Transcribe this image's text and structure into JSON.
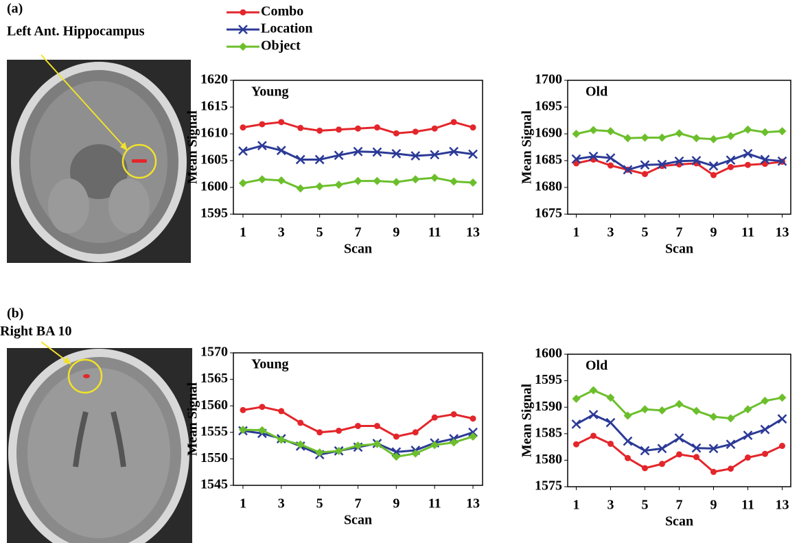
{
  "panels": [
    {
      "label": "(a)",
      "region": "Left Ant. Hippocampus"
    },
    {
      "label": "(b)",
      "region": "Right BA 10"
    }
  ],
  "chart_data": [
    {
      "type": "line",
      "title": "Young",
      "x_label": "Scan",
      "y_label": "Mean Signal",
      "x": [
        1,
        2,
        3,
        4,
        5,
        6,
        7,
        8,
        9,
        10,
        11,
        12,
        13
      ],
      "xlim": [
        0.5,
        13.5
      ],
      "xticks": [
        1,
        3,
        5,
        7,
        9,
        11,
        13
      ],
      "ylim": [
        1595,
        1620
      ],
      "yticks": [
        1595,
        1600,
        1605,
        1610,
        1615,
        1620
      ],
      "grid": false,
      "series": [
        {
          "name": "Combo",
          "color": "#e3262b",
          "marker": "circle",
          "values": [
            1611.2,
            1611.8,
            1612.2,
            1611.1,
            1610.6,
            1610.8,
            1611.0,
            1611.2,
            1610.1,
            1610.4,
            1611.0,
            1612.2,
            1611.2
          ]
        },
        {
          "name": "Location",
          "color": "#2b3a96",
          "marker": "x",
          "values": [
            1606.8,
            1607.8,
            1606.9,
            1605.2,
            1605.2,
            1606.0,
            1606.7,
            1606.6,
            1606.3,
            1605.9,
            1606.1,
            1606.7,
            1606.2
          ]
        },
        {
          "name": "Object",
          "color": "#6cbf2c",
          "marker": "diamond",
          "values": [
            1600.8,
            1601.5,
            1601.3,
            1599.8,
            1600.2,
            1600.5,
            1601.2,
            1601.2,
            1601.0,
            1601.5,
            1601.8,
            1601.1,
            1600.9
          ]
        }
      ]
    },
    {
      "type": "line",
      "title": "Old",
      "x_label": "Scan",
      "y_label": "Mean Signal",
      "x": [
        1,
        2,
        3,
        4,
        5,
        6,
        7,
        8,
        9,
        10,
        11,
        12,
        13
      ],
      "xlim": [
        0.5,
        13.5
      ],
      "xticks": [
        1,
        3,
        5,
        7,
        9,
        11,
        13
      ],
      "ylim": [
        1675,
        1700
      ],
      "yticks": [
        1675,
        1680,
        1685,
        1690,
        1695,
        1700
      ],
      "grid": false,
      "series": [
        {
          "name": "Combo",
          "color": "#e3262b",
          "marker": "circle",
          "values": [
            1684.5,
            1685.2,
            1684.1,
            1683.3,
            1682.5,
            1684.0,
            1684.3,
            1684.5,
            1682.3,
            1683.8,
            1684.2,
            1684.4,
            1684.8
          ]
        },
        {
          "name": "Location",
          "color": "#2b3a96",
          "marker": "x",
          "values": [
            1685.3,
            1685.8,
            1685.5,
            1683.3,
            1684.2,
            1684.3,
            1684.9,
            1685.0,
            1684.0,
            1685.1,
            1686.3,
            1685.2,
            1684.9
          ]
        },
        {
          "name": "Object",
          "color": "#6cbf2c",
          "marker": "diamond",
          "values": [
            1690.0,
            1690.7,
            1690.5,
            1689.2,
            1689.3,
            1689.3,
            1690.1,
            1689.2,
            1689.0,
            1689.6,
            1690.8,
            1690.3,
            1690.5
          ]
        }
      ]
    },
    {
      "type": "line",
      "title": "Young",
      "x_label": "Scan",
      "y_label": "Mean Signal",
      "x": [
        1,
        2,
        3,
        4,
        5,
        6,
        7,
        8,
        9,
        10,
        11,
        12,
        13
      ],
      "xlim": [
        0.5,
        13.5
      ],
      "xticks": [
        1,
        3,
        5,
        7,
        9,
        11,
        13
      ],
      "ylim": [
        1545,
        1570
      ],
      "yticks": [
        1545,
        1550,
        1555,
        1560,
        1565,
        1570
      ],
      "grid": false,
      "series": [
        {
          "name": "Combo",
          "color": "#e3262b",
          "marker": "circle",
          "values": [
            1559.2,
            1559.8,
            1559.0,
            1556.8,
            1555.0,
            1555.3,
            1556.2,
            1556.2,
            1554.2,
            1555.0,
            1557.8,
            1558.4,
            1557.6
          ]
        },
        {
          "name": "Location",
          "color": "#2b3a96",
          "marker": "x",
          "values": [
            1555.3,
            1554.8,
            1553.8,
            1552.4,
            1550.8,
            1551.5,
            1552.2,
            1552.9,
            1551.3,
            1551.6,
            1553.0,
            1553.8,
            1555.0
          ]
        },
        {
          "name": "Object",
          "color": "#6cbf2c",
          "marker": "diamond",
          "values": [
            1555.5,
            1555.4,
            1553.6,
            1552.7,
            1551.2,
            1551.5,
            1552.5,
            1552.8,
            1550.4,
            1551.0,
            1552.6,
            1553.1,
            1554.2
          ]
        }
      ]
    },
    {
      "type": "line",
      "title": "Old",
      "x_label": "Scan",
      "y_label": "Mean Signal",
      "x": [
        1,
        2,
        3,
        4,
        5,
        6,
        7,
        8,
        9,
        10,
        11,
        12,
        13
      ],
      "xlim": [
        0.5,
        13.5
      ],
      "xticks": [
        1,
        3,
        5,
        7,
        9,
        11,
        13
      ],
      "ylim": [
        1575,
        1600
      ],
      "yticks": [
        1575,
        1580,
        1585,
        1590,
        1595,
        1600
      ],
      "grid": false,
      "series": [
        {
          "name": "Combo",
          "color": "#e3262b",
          "marker": "circle",
          "values": [
            1583.0,
            1584.6,
            1583.1,
            1580.4,
            1578.5,
            1579.3,
            1581.1,
            1580.6,
            1577.8,
            1578.4,
            1580.5,
            1581.2,
            1582.7
          ]
        },
        {
          "name": "Location",
          "color": "#2b3a96",
          "marker": "x",
          "values": [
            1586.8,
            1588.6,
            1587.1,
            1583.6,
            1581.8,
            1582.2,
            1584.2,
            1582.3,
            1582.2,
            1583.0,
            1584.7,
            1585.8,
            1587.8
          ]
        },
        {
          "name": "Object",
          "color": "#6cbf2c",
          "marker": "diamond",
          "values": [
            1591.6,
            1593.2,
            1591.8,
            1588.4,
            1589.6,
            1589.4,
            1590.6,
            1589.3,
            1588.2,
            1587.9,
            1589.6,
            1591.2,
            1591.8
          ]
        }
      ]
    }
  ]
}
